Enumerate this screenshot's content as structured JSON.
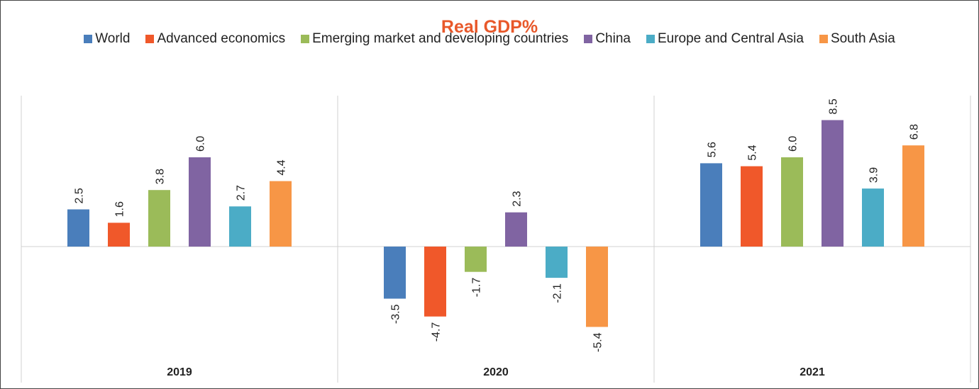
{
  "chart_data": {
    "type": "bar",
    "title": "Real GDP%",
    "categories": [
      "2019",
      "2020",
      "2021"
    ],
    "series": [
      {
        "name": "World",
        "color": "#4a7ebb",
        "values": [
          2.5,
          -3.5,
          5.6
        ],
        "value_labels": [
          "2.5",
          "-3.5",
          "5.6"
        ]
      },
      {
        "name": "Advanced economics",
        "color": "#f0582a",
        "values": [
          1.6,
          -4.7,
          5.4
        ],
        "value_labels": [
          "1.6",
          "-4.7",
          "5.4"
        ]
      },
      {
        "name": "Emerging market and developing countries",
        "color": "#9bbb59",
        "values": [
          3.8,
          -1.7,
          6.0
        ],
        "value_labels": [
          "3.8",
          "-1.7",
          "6.0"
        ]
      },
      {
        "name": "China",
        "color": "#8064a2",
        "values": [
          6.0,
          2.3,
          8.5
        ],
        "value_labels": [
          "6.0",
          "2.3",
          "8.5"
        ]
      },
      {
        "name": "Europe and Central Asia",
        "color": "#4bacc6",
        "values": [
          2.7,
          -2.1,
          3.9
        ],
        "value_labels": [
          "2.7",
          "-2.1",
          "3.9"
        ]
      },
      {
        "name": "South Asia",
        "color": "#f79646",
        "values": [
          4.4,
          -5.4,
          6.8
        ],
        "value_labels": [
          "4.4",
          "-5.4",
          "6.8"
        ]
      }
    ],
    "ylim": [
      -8,
      10
    ]
  }
}
